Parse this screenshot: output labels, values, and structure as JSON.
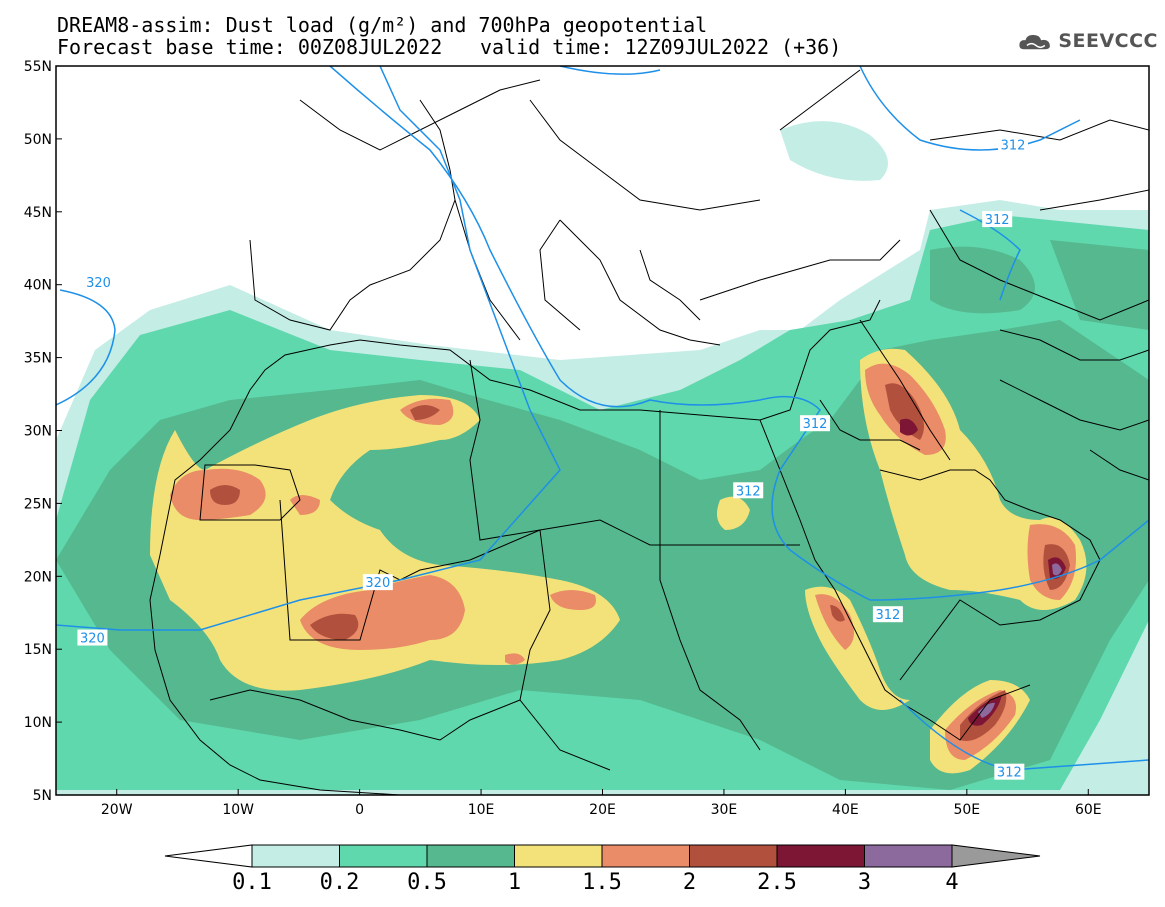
{
  "title": {
    "line1": "DREAM8-assim: Dust load (g/m²) and 700hPa geopotential",
    "line2_left": "Forecast base time: 00Z08JUL2022",
    "line2_right": "valid time: 12Z09JUL2022 (+36)"
  },
  "logo": {
    "text": "SEEVCCC",
    "icon": "cloud-icon"
  },
  "map": {
    "lon_range": [
      -25,
      65
    ],
    "lat_range": [
      5,
      55
    ],
    "lon_ticks": [
      {
        "value": -20,
        "label": "20W"
      },
      {
        "value": -10,
        "label": "10W"
      },
      {
        "value": 0,
        "label": "0"
      },
      {
        "value": 10,
        "label": "10E"
      },
      {
        "value": 20,
        "label": "20E"
      },
      {
        "value": 30,
        "label": "30E"
      },
      {
        "value": 40,
        "label": "40E"
      },
      {
        "value": 50,
        "label": "50E"
      },
      {
        "value": 60,
        "label": "60E"
      }
    ],
    "lat_ticks": [
      {
        "value": 55,
        "label": "55N"
      },
      {
        "value": 50,
        "label": "50N"
      },
      {
        "value": 45,
        "label": "45N"
      },
      {
        "value": 40,
        "label": "40N"
      },
      {
        "value": 35,
        "label": "35N"
      },
      {
        "value": 30,
        "label": "30N"
      },
      {
        "value": 25,
        "label": "25N"
      },
      {
        "value": 20,
        "label": "20N"
      },
      {
        "value": 15,
        "label": "15N"
      },
      {
        "value": 10,
        "label": "10N"
      },
      {
        "value": 5,
        "label": "5N"
      }
    ],
    "contour_labels": [
      {
        "text": "320",
        "lon": -21.5,
        "lat": 40.2
      },
      {
        "text": "320",
        "lon": -22.0,
        "lat": 15.8
      },
      {
        "text": "320",
        "lon": 1.5,
        "lat": 19.6
      },
      {
        "text": "312",
        "lon": 32.0,
        "lat": 25.9
      },
      {
        "text": "312",
        "lon": 37.5,
        "lat": 30.5
      },
      {
        "text": "312",
        "lon": 53.8,
        "lat": 49.6
      },
      {
        "text": "312",
        "lon": 52.5,
        "lat": 44.5
      },
      {
        "text": "312",
        "lon": 43.5,
        "lat": 17.4
      },
      {
        "text": "312",
        "lon": 53.5,
        "lat": 6.6
      }
    ]
  },
  "colorbar": {
    "levels": [
      "0.1",
      "0.2",
      "0.5",
      "1",
      "1.5",
      "2",
      "2.5",
      "3",
      "4"
    ],
    "colors": [
      "#ffffff",
      "#c4ede6",
      "#5fd8ad",
      "#55b88f",
      "#f3e27a",
      "#e98c67",
      "#b2503e",
      "#7d1535",
      "#8c6a9d",
      "#9a9a9a"
    ]
  }
}
